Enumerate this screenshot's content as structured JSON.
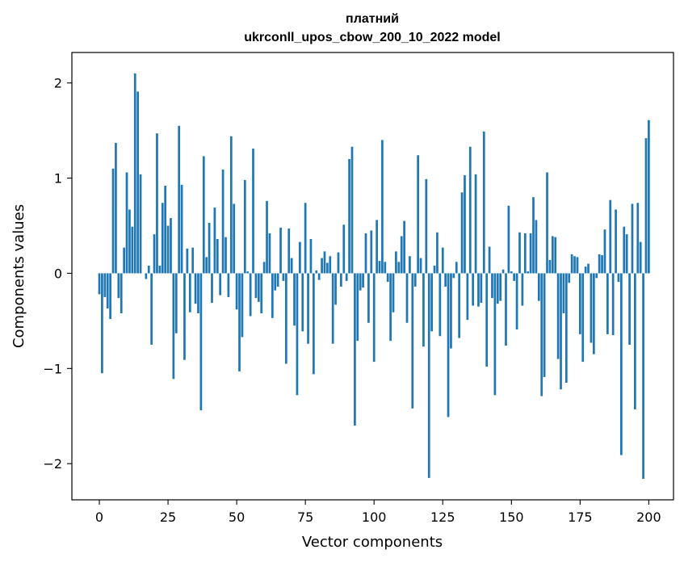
{
  "chart_data": {
    "type": "bar",
    "title_line1": "платний",
    "title_line2": "ukrconll_upos_cbow_200_10_2022 model",
    "xlabel": "Vector components",
    "ylabel": "Components values",
    "xlim": [
      -10,
      209
    ],
    "ylim": [
      -2.38,
      2.32
    ],
    "xticks": [
      0,
      25,
      50,
      75,
      100,
      125,
      150,
      175,
      200
    ],
    "yticks": [
      -2,
      -1,
      0,
      1,
      2
    ],
    "ytick_labels": [
      "−2",
      "−1",
      "0",
      "1",
      "2"
    ],
    "bar_color": "#1f77b4",
    "grid": false,
    "values": [
      -0.22,
      -1.05,
      -0.25,
      -0.37,
      -0.48,
      1.1,
      1.37,
      -0.26,
      -0.42,
      0.27,
      1.06,
      0.67,
      0.49,
      2.1,
      1.91,
      1.04,
      0.0,
      -0.06,
      0.08,
      -0.75,
      0.41,
      1.47,
      0.08,
      0.74,
      0.92,
      0.5,
      0.58,
      -1.11,
      -0.63,
      1.55,
      0.93,
      -0.91,
      0.26,
      -0.41,
      0.27,
      -0.32,
      -0.42,
      -1.44,
      1.23,
      0.17,
      0.53,
      -0.31,
      0.69,
      0.36,
      -0.23,
      1.09,
      0.38,
      -0.25,
      1.44,
      0.73,
      -0.38,
      -1.03,
      -0.67,
      0.98,
      0.02,
      -0.45,
      1.31,
      -0.26,
      -0.3,
      -0.42,
      0.12,
      0.76,
      0.42,
      -0.47,
      -0.18,
      -0.14,
      0.48,
      -0.08,
      -0.95,
      0.47,
      0.16,
      -0.55,
      -1.28,
      0.33,
      -0.61,
      0.74,
      -0.74,
      0.36,
      -1.06,
      0.03,
      -0.07,
      0.16,
      0.23,
      0.11,
      0.18,
      -0.74,
      -0.33,
      0.22,
      -0.14,
      0.51,
      -0.08,
      1.2,
      1.33,
      -1.6,
      -0.71,
      -0.18,
      -0.15,
      0.42,
      -0.52,
      0.45,
      -0.93,
      0.56,
      0.13,
      1.4,
      0.12,
      -0.09,
      -0.71,
      -0.41,
      0.23,
      0.12,
      0.39,
      0.55,
      -0.52,
      0.18,
      -1.42,
      -0.14,
      1.24,
      0.16,
      -0.77,
      0.99,
      -2.15,
      -0.61,
      0.08,
      0.43,
      -0.66,
      0.27,
      -0.14,
      -1.51,
      -0.79,
      -0.05,
      0.12,
      -0.68,
      0.85,
      1.03,
      -0.49,
      1.33,
      -0.34,
      1.04,
      -0.35,
      -0.31,
      1.49,
      -0.98,
      0.28,
      -0.26,
      -1.28,
      -0.32,
      -0.29,
      0.04,
      -0.76,
      0.71,
      0.02,
      -0.08,
      -0.59,
      0.43,
      -0.34,
      0.42,
      0.02,
      0.42,
      0.8,
      0.56,
      -0.29,
      -1.29,
      -1.09,
      1.06,
      0.14,
      0.39,
      0.38,
      -0.9,
      -1.22,
      -0.42,
      -1.15,
      -0.1,
      0.2,
      0.18,
      0.17,
      -0.64,
      -0.93,
      0.07,
      0.1,
      -0.73,
      -0.85,
      -0.05,
      0.2,
      0.19,
      0.46,
      -0.64,
      0.77,
      -0.65,
      0.67,
      -0.09,
      -1.91,
      0.49,
      0.41,
      -0.75,
      0.73,
      -1.43,
      0.74,
      0.33,
      -2.16,
      1.42,
      1.61
    ]
  }
}
